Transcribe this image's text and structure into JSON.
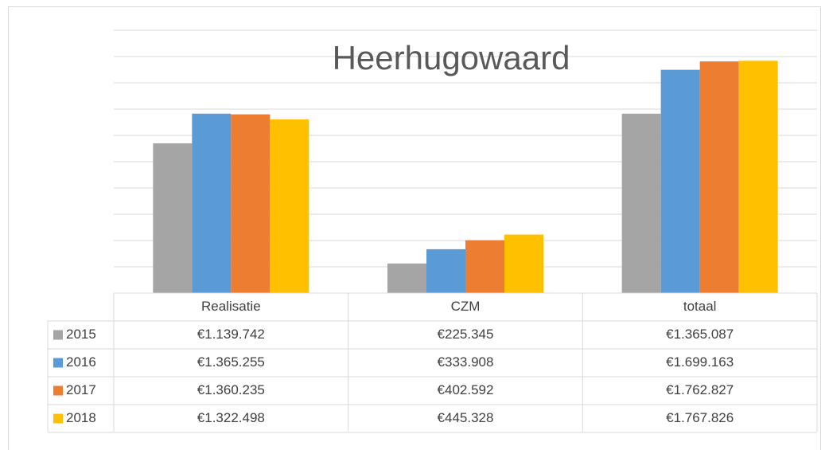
{
  "chart_data": {
    "type": "bar",
    "title": "Heerhugowaard",
    "categories": [
      "Realisatie",
      "CZM",
      "totaal"
    ],
    "series": [
      {
        "name": "2015",
        "color": "#a5a5a5",
        "values": [
          1139742,
          225345,
          1365087
        ],
        "value_labels": [
          "€1.139.742",
          "€225.345",
          "€1.365.087"
        ]
      },
      {
        "name": "2016",
        "color": "#5b9bd5",
        "values": [
          1365255,
          333908,
          1699163
        ],
        "value_labels": [
          "€1.365.255",
          "€333.908",
          "€1.699.163"
        ]
      },
      {
        "name": "2017",
        "color": "#ed7d31",
        "values": [
          1360235,
          402592,
          1762827
        ],
        "value_labels": [
          "€1.360.235",
          "€402.592",
          "€1.762.827"
        ]
      },
      {
        "name": "2018",
        "color": "#ffc000",
        "values": [
          1322498,
          445328,
          1767826
        ],
        "value_labels": [
          "€1.322.498",
          "€445.328",
          "€1.767.826"
        ]
      }
    ],
    "ylim": [
      0,
      2000000
    ],
    "yticks": [
      0,
      200000,
      400000,
      600000,
      800000,
      1000000,
      1200000,
      1400000,
      1600000,
      1800000,
      2000000
    ],
    "grid": true
  }
}
